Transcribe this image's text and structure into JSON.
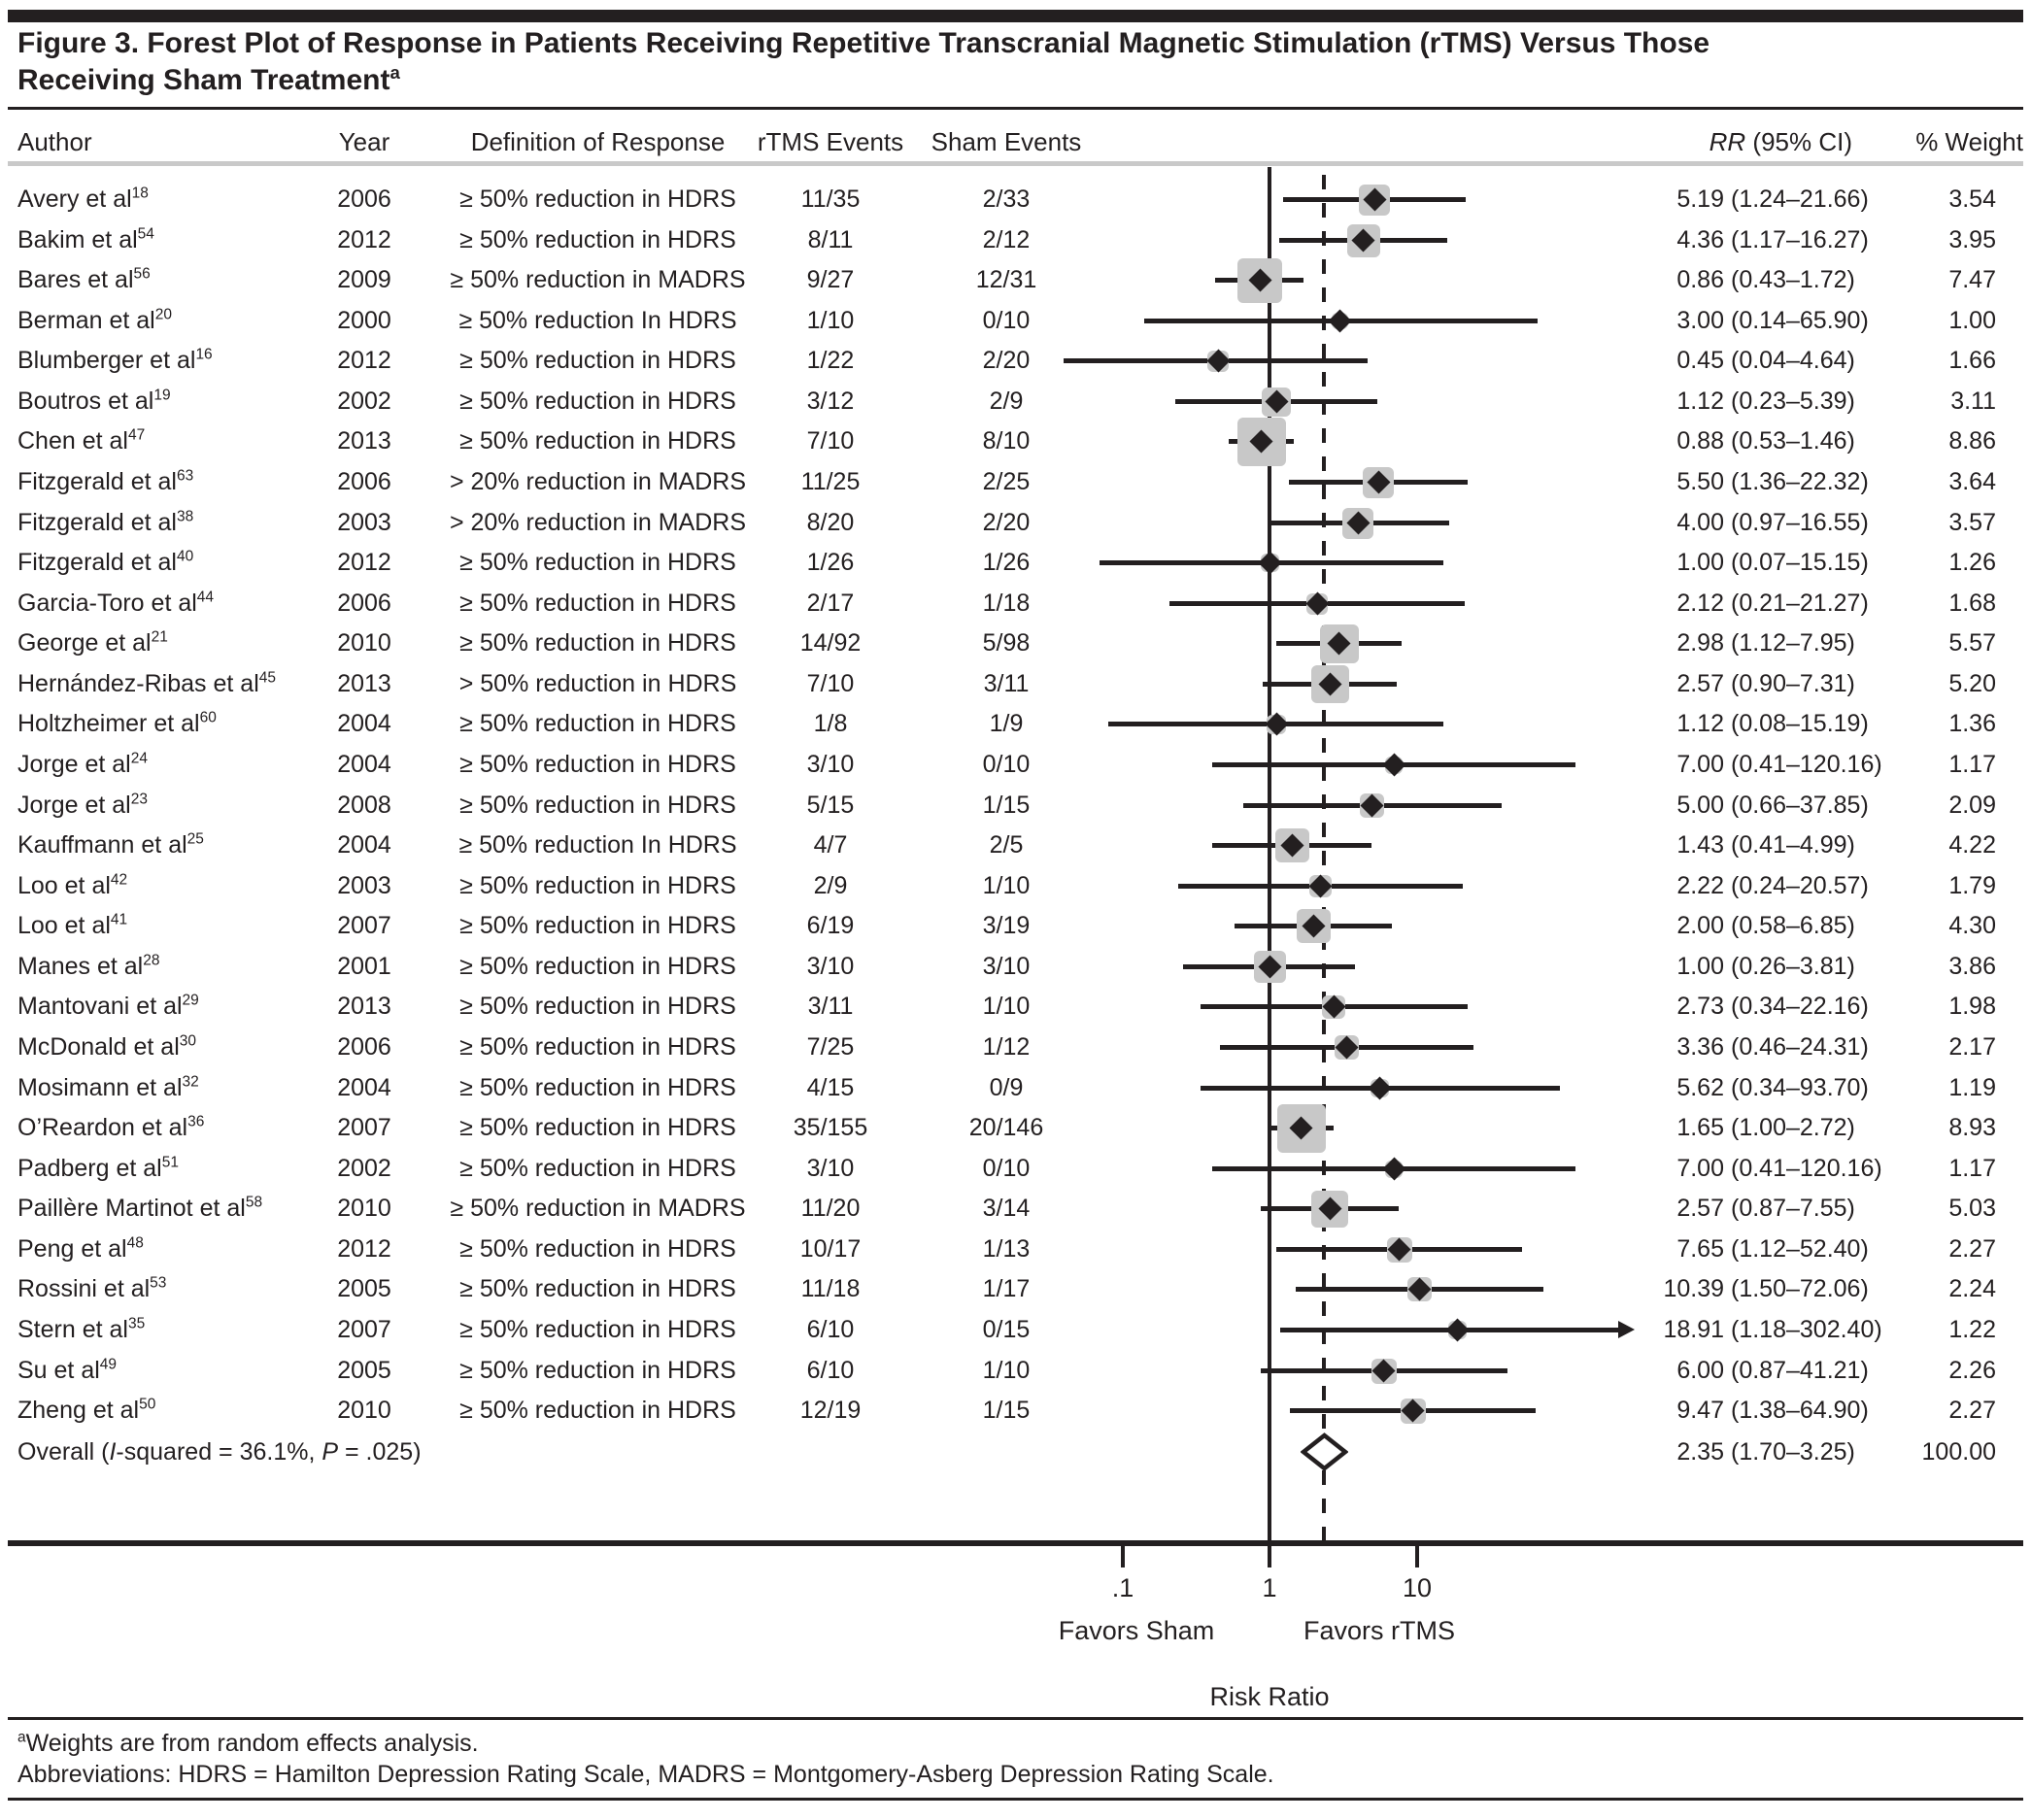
{
  "figure": {
    "title_line1": "Figure 3. Forest Plot of Response in Patients Receiving Repetitive Transcranial Magnetic Stimulation (rTMS) Versus Those",
    "title_line2": "Receiving Sham Treatment",
    "title_sup": "a",
    "footnote1_sup": "a",
    "footnote1": "Weights are from random effects analysis.",
    "footnote2": "Abbreviations: HDRS = Hamilton Depression Rating Scale, MADRS = Montgomery-Asberg Depression Rating Scale."
  },
  "colors": {
    "ink": "#231f20",
    "square_gray": "#c8c8c8",
    "rule_gray": "#c9c9c9"
  },
  "chart_data": {
    "type": "forest",
    "columns": [
      "Author",
      "Year",
      "Definition of Response",
      "rTMS Events",
      "Sham Events",
      "RR (95% CI)",
      "% Weight"
    ],
    "rr_header": {
      "italic": "RR",
      "rest": " (95% CI)"
    },
    "axis": {
      "scale": "log",
      "ticks": [
        0.1,
        1,
        10
      ],
      "tick_labels": [
        ".1",
        "1",
        "10"
      ],
      "null_line": 1,
      "xlabel": "Risk Ratio",
      "left_label": "Favors Sham",
      "right_label": "Favors rTMS"
    },
    "studies": [
      {
        "author": "Avery et al",
        "ref": "18",
        "year": "2006",
        "definition": "≥ 50% reduction in HDRS",
        "rtms": "11/35",
        "sham": "2/33",
        "rr": 5.19,
        "lo": 1.24,
        "hi": 21.66,
        "rr_ci": "5.19 (1.24–21.66)",
        "weight": "3.54"
      },
      {
        "author": "Bakim et al",
        "ref": "54",
        "year": "2012",
        "definition": "≥ 50% reduction in HDRS",
        "rtms": "8/11",
        "sham": "2/12",
        "rr": 4.36,
        "lo": 1.17,
        "hi": 16.27,
        "rr_ci": "4.36 (1.17–16.27)",
        "weight": "3.95"
      },
      {
        "author": "Bares et al",
        "ref": "56",
        "year": "2009",
        "definition": "≥ 50% reduction in MADRS",
        "rtms": "9/27",
        "sham": "12/31",
        "rr": 0.86,
        "lo": 0.43,
        "hi": 1.72,
        "rr_ci": "0.86 (0.43–1.72)",
        "weight": "7.47"
      },
      {
        "author": "Berman et al",
        "ref": "20",
        "year": "2000",
        "definition": "≥ 50% reduction In HDRS",
        "rtms": "1/10",
        "sham": "0/10",
        "rr": 3.0,
        "lo": 0.14,
        "hi": 65.9,
        "rr_ci": "3.00 (0.14–65.90)",
        "weight": "1.00"
      },
      {
        "author": "Blumberger et al",
        "ref": "16",
        "year": "2012",
        "definition": "≥ 50% reduction in HDRS",
        "rtms": "1/22",
        "sham": "2/20",
        "rr": 0.45,
        "lo": 0.04,
        "hi": 4.64,
        "rr_ci": "0.45 (0.04–4.64)",
        "weight": "1.66"
      },
      {
        "author": "Boutros et al",
        "ref": "19",
        "year": "2002",
        "definition": "≥ 50% reduction in HDRS",
        "rtms": "3/12",
        "sham": "2/9",
        "rr": 1.12,
        "lo": 0.23,
        "hi": 5.39,
        "rr_ci": "1.12 (0.23–5.39)",
        "weight": "3.11"
      },
      {
        "author": "Chen et al",
        "ref": "47",
        "year": "2013",
        "definition": "≥ 50% reduction in HDRS",
        "rtms": "7/10",
        "sham": "8/10",
        "rr": 0.88,
        "lo": 0.53,
        "hi": 1.46,
        "rr_ci": "0.88 (0.53–1.46)",
        "weight": "8.86"
      },
      {
        "author": "Fitzgerald et al",
        "ref": "63",
        "year": "2006",
        "definition": "> 20% reduction in MADRS",
        "rtms": "11/25",
        "sham": "2/25",
        "rr": 5.5,
        "lo": 1.36,
        "hi": 22.32,
        "rr_ci": "5.50 (1.36–22.32)",
        "weight": "3.64"
      },
      {
        "author": "Fitzgerald et al",
        "ref": "38",
        "year": "2003",
        "definition": "> 20% reduction in MADRS",
        "rtms": "8/20",
        "sham": "2/20",
        "rr": 4.0,
        "lo": 0.97,
        "hi": 16.55,
        "rr_ci": "4.00 (0.97–16.55)",
        "weight": "3.57"
      },
      {
        "author": "Fitzgerald et al",
        "ref": "40",
        "year": "2012",
        "definition": "≥ 50% reduction in HDRS",
        "rtms": "1/26",
        "sham": "1/26",
        "rr": 1.0,
        "lo": 0.07,
        "hi": 15.15,
        "rr_ci": "1.00 (0.07–15.15)",
        "weight": "1.26"
      },
      {
        "author": "Garcia-Toro et al",
        "ref": "44",
        "year": "2006",
        "definition": "≥ 50% reduction in HDRS",
        "rtms": "2/17",
        "sham": "1/18",
        "rr": 2.12,
        "lo": 0.21,
        "hi": 21.27,
        "rr_ci": "2.12 (0.21–21.27)",
        "weight": "1.68"
      },
      {
        "author": "George et al",
        "ref": "21",
        "year": "2010",
        "definition": "≥ 50% reduction in HDRS",
        "rtms": "14/92",
        "sham": "5/98",
        "rr": 2.98,
        "lo": 1.12,
        "hi": 7.95,
        "rr_ci": "2.98 (1.12–7.95)",
        "weight": "5.57"
      },
      {
        "author": "Hernández-Ribas et al",
        "ref": "45",
        "year": "2013",
        "definition": "> 50% reduction in HDRS",
        "rtms": "7/10",
        "sham": "3/11",
        "rr": 2.57,
        "lo": 0.9,
        "hi": 7.31,
        "rr_ci": "2.57 (0.90–7.31)",
        "weight": "5.20"
      },
      {
        "author": "Holtzheimer et al",
        "ref": "60",
        "year": "2004",
        "definition": "≥ 50% reduction in HDRS",
        "rtms": "1/8",
        "sham": "1/9",
        "rr": 1.12,
        "lo": 0.08,
        "hi": 15.19,
        "rr_ci": "1.12 (0.08–15.19)",
        "weight": "1.36"
      },
      {
        "author": "Jorge et al",
        "ref": "24",
        "year": "2004",
        "definition": "≥ 50% reduction in HDRS",
        "rtms": "3/10",
        "sham": "0/10",
        "rr": 7.0,
        "lo": 0.41,
        "hi": 120.16,
        "rr_ci": "7.00 (0.41–120.16)",
        "weight": "1.17"
      },
      {
        "author": "Jorge et al",
        "ref": "23",
        "year": "2008",
        "definition": "≥ 50% reduction in HDRS",
        "rtms": "5/15",
        "sham": "1/15",
        "rr": 5.0,
        "lo": 0.66,
        "hi": 37.85,
        "rr_ci": "5.00 (0.66–37.85)",
        "weight": "2.09"
      },
      {
        "author": "Kauffmann et al",
        "ref": "25",
        "year": "2004",
        "definition": "≥ 50% reduction In HDRS",
        "rtms": "4/7",
        "sham": "2/5",
        "rr": 1.43,
        "lo": 0.41,
        "hi": 4.99,
        "rr_ci": "1.43 (0.41–4.99)",
        "weight": "4.22"
      },
      {
        "author": "Loo et al",
        "ref": "42",
        "year": "2003",
        "definition": "≥ 50% reduction in HDRS",
        "rtms": "2/9",
        "sham": "1/10",
        "rr": 2.22,
        "lo": 0.24,
        "hi": 20.57,
        "rr_ci": "2.22 (0.24–20.57)",
        "weight": "1.79"
      },
      {
        "author": "Loo et al",
        "ref": "41",
        "year": "2007",
        "definition": "≥ 50% reduction in HDRS",
        "rtms": "6/19",
        "sham": "3/19",
        "rr": 2.0,
        "lo": 0.58,
        "hi": 6.85,
        "rr_ci": "2.00 (0.58–6.85)",
        "weight": "4.30"
      },
      {
        "author": "Manes et al",
        "ref": "28",
        "year": "2001",
        "definition": "≥ 50% reduction in HDRS",
        "rtms": "3/10",
        "sham": "3/10",
        "rr": 1.0,
        "lo": 0.26,
        "hi": 3.81,
        "rr_ci": "1.00 (0.26–3.81)",
        "weight": "3.86"
      },
      {
        "author": "Mantovani et al",
        "ref": "29",
        "year": "2013",
        "definition": "≥ 50% reduction in HDRS",
        "rtms": "3/11",
        "sham": "1/10",
        "rr": 2.73,
        "lo": 0.34,
        "hi": 22.16,
        "rr_ci": "2.73 (0.34–22.16)",
        "weight": "1.98"
      },
      {
        "author": "McDonald et al",
        "ref": "30",
        "year": "2006",
        "definition": "≥ 50% reduction in HDRS",
        "rtms": "7/25",
        "sham": "1/12",
        "rr": 3.36,
        "lo": 0.46,
        "hi": 24.31,
        "rr_ci": "3.36 (0.46–24.31)",
        "weight": "2.17"
      },
      {
        "author": "Mosimann et al",
        "ref": "32",
        "year": "2004",
        "definition": "≥ 50% reduction in HDRS",
        "rtms": "4/15",
        "sham": "0/9",
        "rr": 5.62,
        "lo": 0.34,
        "hi": 93.7,
        "rr_ci": "5.62 (0.34–93.70)",
        "weight": "1.19"
      },
      {
        "author": "O’Reardon et al",
        "ref": "36",
        "year": "2007",
        "definition": "≥ 50% reduction in HDRS",
        "rtms": "35/155",
        "sham": "20/146",
        "rr": 1.65,
        "lo": 1.0,
        "hi": 2.72,
        "rr_ci": "1.65 (1.00–2.72)",
        "weight": "8.93"
      },
      {
        "author": "Padberg et al",
        "ref": "51",
        "year": "2002",
        "definition": "≥ 50% reduction in HDRS",
        "rtms": "3/10",
        "sham": "0/10",
        "rr": 7.0,
        "lo": 0.41,
        "hi": 120.16,
        "rr_ci": "7.00 (0.41–120.16)",
        "weight": "1.17"
      },
      {
        "author": "Paillère Martinot et al",
        "ref": "58",
        "year": "2010",
        "definition": "≥ 50% reduction in MADRS",
        "rtms": "11/20",
        "sham": "3/14",
        "rr": 2.57,
        "lo": 0.87,
        "hi": 7.55,
        "rr_ci": "2.57 (0.87–7.55)",
        "weight": "5.03"
      },
      {
        "author": "Peng et al",
        "ref": "48",
        "year": "2012",
        "definition": "≥ 50% reduction in HDRS",
        "rtms": "10/17",
        "sham": "1/13",
        "rr": 7.65,
        "lo": 1.12,
        "hi": 52.4,
        "rr_ci": "7.65 (1.12–52.40)",
        "weight": "2.27"
      },
      {
        "author": "Rossini et al",
        "ref": "53",
        "year": "2005",
        "definition": "≥ 50% reduction in HDRS",
        "rtms": "11/18",
        "sham": "1/17",
        "rr": 10.39,
        "lo": 1.5,
        "hi": 72.06,
        "rr_ci": "10.39 (1.50–72.06)",
        "weight": "2.24"
      },
      {
        "author": "Stern et al",
        "ref": "35",
        "year": "2007",
        "definition": "≥ 50% reduction in HDRS",
        "rtms": "6/10",
        "sham": "0/15",
        "rr": 18.91,
        "lo": 1.18,
        "hi": 302.4,
        "rr_ci": "18.91 (1.18–302.40)",
        "weight": "1.22",
        "arrow": true
      },
      {
        "author": "Su et al",
        "ref": "49",
        "year": "2005",
        "definition": "≥ 50% reduction in HDRS",
        "rtms": "6/10",
        "sham": "1/10",
        "rr": 6.0,
        "lo": 0.87,
        "hi": 41.21,
        "rr_ci": "6.00 (0.87–41.21)",
        "weight": "2.26"
      },
      {
        "author": "Zheng et al",
        "ref": "50",
        "year": "2010",
        "definition": "≥ 50% reduction in HDRS",
        "rtms": "12/19",
        "sham": "1/15",
        "rr": 9.47,
        "lo": 1.38,
        "hi": 64.9,
        "rr_ci": "9.47 (1.38–64.90)",
        "weight": "2.27"
      }
    ],
    "overall": {
      "label_parts": {
        "pre": "Overall (",
        "i1": "I",
        "mid": "-squared = 36.1%, ",
        "i2": "P",
        "post": " = .025)"
      },
      "rr": 2.35,
      "lo": 1.7,
      "hi": 3.25,
      "rr_ci": "2.35 (1.70–3.25)",
      "weight": "100.00"
    }
  }
}
